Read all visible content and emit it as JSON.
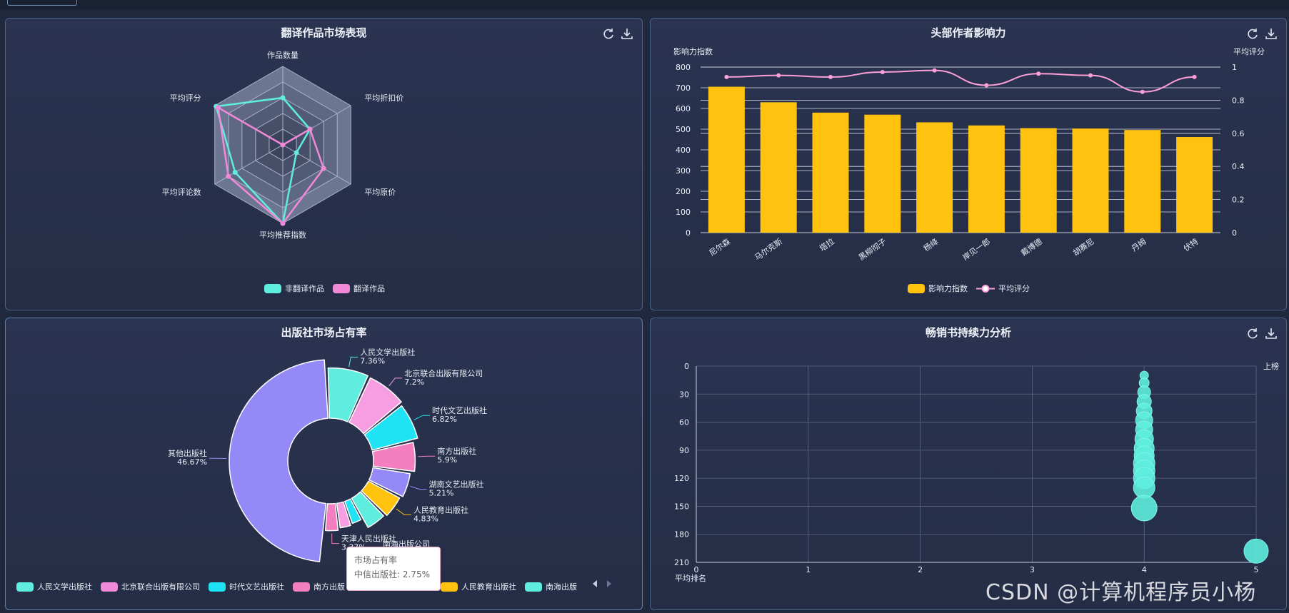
{
  "panels": {
    "radar": {
      "title": "翻译作品市场表现"
    },
    "bar": {
      "title": "头部作者影响力"
    },
    "pie": {
      "title": "出版社市场占有率"
    },
    "scatter": {
      "title": "畅销书持续力分析"
    }
  },
  "colors": {
    "cyan": "#5eedde",
    "pink": "#f08ad8",
    "yellow": "#ffc20e",
    "line": "#ff9fd8",
    "purple": "#9588f7",
    "teal": "#1fe3f5"
  },
  "tooltip": {
    "title": "市场占有率",
    "text": "中信出版社: 2.75%"
  },
  "watermark": "CSDN @计算机程序员小杨",
  "chart_data": [
    {
      "type": "radar",
      "title": "翻译作品市场表现",
      "indicators": [
        "作品数量",
        "平均折扣价",
        "平均原价",
        "平均推荐指数",
        "平均评论数",
        "平均评分"
      ],
      "series": [
        {
          "name": "非翻译作品",
          "values": [
            0.6,
            0.4,
            0.2,
            1.0,
            0.7,
            0.98
          ]
        },
        {
          "name": "翻译作品",
          "values": [
            0.0,
            0.4,
            0.6,
            1.0,
            0.8,
            0.95
          ]
        }
      ],
      "legend": [
        "非翻译作品",
        "翻译作品"
      ]
    },
    {
      "type": "bar",
      "title": "头部作者影响力",
      "categories": [
        "尼尔森",
        "马尔克斯",
        "塔拉",
        "黑柳彻子",
        "杨绛",
        "岸见一郎",
        "戴博德",
        "胡赛尼",
        "丹姆",
        "伏特"
      ],
      "series": [
        {
          "name": "影响力指数",
          "values": [
            705,
            630,
            580,
            570,
            533,
            518,
            505,
            503,
            496,
            462
          ]
        },
        {
          "name": "平均评分",
          "values": [
            0.94,
            0.95,
            0.94,
            0.97,
            0.98,
            0.89,
            0.96,
            0.95,
            0.85,
            0.94
          ]
        }
      ],
      "ylabel": "影响力指数",
      "y2label": "平均评分",
      "ylim": [
        0,
        800
      ],
      "y2lim": [
        0,
        1
      ],
      "yticks": [
        "0",
        "100",
        "200",
        "300",
        "400",
        "500",
        "600",
        "700",
        "800"
      ],
      "y2ticks": [
        "0",
        "0.2",
        "0.4",
        "0.6",
        "0.8",
        "1"
      ],
      "legend": [
        "影响力指数",
        "平均评分"
      ]
    },
    {
      "type": "pie",
      "title": "出版社市场占有率",
      "slices": [
        {
          "name": "人民文学出版社",
          "value": 7.36,
          "label": "7.36%"
        },
        {
          "name": "北京联合出版有限公司",
          "value": 7.2,
          "label": "7.2%"
        },
        {
          "name": "时代文艺出版社",
          "value": 6.82,
          "label": "6.82%"
        },
        {
          "name": "南方出版社",
          "value": 5.9,
          "label": "5.9%"
        },
        {
          "name": "湖南文艺出版社",
          "value": 5.21,
          "label": "5.21%"
        },
        {
          "name": "人民教育出版社",
          "value": 4.83,
          "label": "4.83%"
        },
        {
          "name": "南海出版公司",
          "value": 4.5,
          "label": ""
        },
        {
          "name": "中信出版社",
          "value": 2.75,
          "label": ""
        },
        {
          "name": "",
          "value": 3.0,
          "label": ""
        },
        {
          "name": "天津人民出版社",
          "value": 3.37,
          "label": "3.37%"
        },
        {
          "name": "其他出版社",
          "value": 46.67,
          "label": "46.67%"
        }
      ],
      "legend": [
        "人民文学出版社",
        "北京联合出版有限公司",
        "时代文艺出版社",
        "南方出版",
        "",
        "人民教育出版社",
        "南海出版"
      ]
    },
    {
      "type": "scatter",
      "title": "畅销书持续力分析",
      "xlabel": "平均排名",
      "ylabel": "上榜",
      "xlim": [
        0,
        5
      ],
      "ylim": [
        210,
        0
      ],
      "xticks": [
        "0",
        "1",
        "2",
        "3",
        "4",
        "5"
      ],
      "yticks": [
        "0",
        "30",
        "60",
        "90",
        "120",
        "150",
        "180",
        "210"
      ],
      "points": [
        {
          "x": 4,
          "y": 10,
          "r": 6
        },
        {
          "x": 4,
          "y": 18,
          "r": 7
        },
        {
          "x": 4,
          "y": 28,
          "r": 9
        },
        {
          "x": 4,
          "y": 38,
          "r": 10
        },
        {
          "x": 4,
          "y": 48,
          "r": 11
        },
        {
          "x": 4,
          "y": 58,
          "r": 12
        },
        {
          "x": 4,
          "y": 68,
          "r": 12
        },
        {
          "x": 4,
          "y": 78,
          "r": 13
        },
        {
          "x": 4,
          "y": 88,
          "r": 14
        },
        {
          "x": 4,
          "y": 96,
          "r": 14
        },
        {
          "x": 4,
          "y": 104,
          "r": 15
        },
        {
          "x": 4,
          "y": 112,
          "r": 15
        },
        {
          "x": 4,
          "y": 120,
          "r": 15
        },
        {
          "x": 4,
          "y": 130,
          "r": 15
        },
        {
          "x": 4,
          "y": 152,
          "r": 18
        },
        {
          "x": 5,
          "y": 198,
          "r": 17
        }
      ]
    }
  ]
}
